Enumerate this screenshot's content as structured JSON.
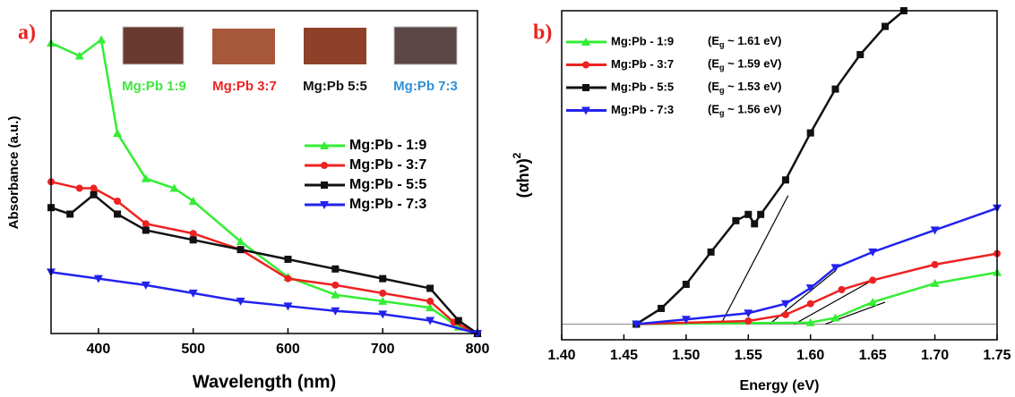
{
  "chart_data": [
    {
      "type": "line",
      "panel_label": "a)",
      "xlabel": "Wavelength (nm)",
      "ylabel": "Absorbance (a.u.)",
      "xlim": [
        350,
        800
      ],
      "xticks": [
        400,
        500,
        600,
        700,
        800
      ],
      "ylim": [
        0,
        1
      ],
      "photo_labels": [
        {
          "text": "Mg:Pb 1:9",
          "color": "#3ee63e"
        },
        {
          "text": "Mg:Pb 3:7",
          "color": "#ee2222"
        },
        {
          "text": "Mg:Pb 5:5",
          "color": "#111111"
        },
        {
          "text": "Mg:Pb 7:3",
          "color": "#2f8fd8"
        }
      ],
      "series": [
        {
          "name": "Mg:Pb - 1:9",
          "color": "#33ee33",
          "marker": "triangle-up",
          "x": [
            350,
            380,
            403,
            420,
            450,
            480,
            500,
            550,
            600,
            650,
            700,
            750,
            780,
            800
          ],
          "values": [
            0.9,
            0.86,
            0.91,
            0.62,
            0.48,
            0.45,
            0.41,
            0.285,
            0.175,
            0.12,
            0.1,
            0.08,
            0.02,
            0
          ]
        },
        {
          "name": "Mg:Pb - 3:7",
          "color": "#ee2222",
          "marker": "circle",
          "x": [
            350,
            380,
            395,
            420,
            450,
            500,
            550,
            600,
            650,
            700,
            750,
            775,
            800
          ],
          "values": [
            0.47,
            0.45,
            0.45,
            0.41,
            0.34,
            0.31,
            0.26,
            0.17,
            0.15,
            0.125,
            0.1,
            0.035,
            0
          ]
        },
        {
          "name": "Mg:Pb - 5:5",
          "color": "#111111",
          "marker": "square",
          "x": [
            350,
            370,
            395,
            420,
            450,
            500,
            550,
            600,
            650,
            700,
            750,
            780,
            800
          ],
          "values": [
            0.39,
            0.37,
            0.43,
            0.37,
            0.32,
            0.29,
            0.26,
            0.23,
            0.2,
            0.17,
            0.14,
            0.04,
            0
          ]
        },
        {
          "name": "Mg:Pb - 7:3",
          "color": "#2222ee",
          "marker": "triangle-down",
          "x": [
            350,
            400,
            450,
            500,
            550,
            600,
            650,
            700,
            750,
            800
          ],
          "values": [
            0.19,
            0.17,
            0.15,
            0.125,
            0.1,
            0.085,
            0.07,
            0.06,
            0.04,
            0
          ]
        }
      ]
    },
    {
      "type": "line",
      "panel_label": "b)",
      "xlabel": "Energy (eV)",
      "ylabel": "(αhν)",
      "ylabel_sup": "2",
      "xlim": [
        1.4,
        1.75
      ],
      "ylim": [
        -0.05,
        1
      ],
      "xticks": [
        {
          "value": 1.4,
          "label": "1.40"
        },
        {
          "value": 1.45,
          "label": "1.45"
        },
        {
          "value": 1.5,
          "label": "1.50"
        },
        {
          "value": 1.55,
          "label": "1.55"
        },
        {
          "value": 1.6,
          "label": "1.60"
        },
        {
          "value": 1.65,
          "label": "1.65"
        },
        {
          "value": 1.7,
          "label": "1.70"
        },
        {
          "value": 1.75,
          "label": "1.75"
        }
      ],
      "series": [
        {
          "name": "Mg:Pb - 1:9",
          "color": "#33ee33",
          "marker": "triangle-up",
          "note": {
            "prefix": "(E",
            "sub": "g",
            "suffix": " ~ 1.61 eV)"
          },
          "x": [
            1.46,
            1.6,
            1.62,
            1.65,
            1.7,
            1.75
          ],
          "values": [
            0,
            0.005,
            0.02,
            0.07,
            0.13,
            0.165
          ]
        },
        {
          "name": "Mg:Pb - 3:7",
          "color": "#ee2222",
          "marker": "circle",
          "note": {
            "prefix": "(E",
            "sub": "g",
            "suffix": " ~ 1.59 eV)"
          },
          "x": [
            1.46,
            1.55,
            1.58,
            1.6,
            1.625,
            1.65,
            1.7,
            1.75
          ],
          "values": [
            0,
            0.01,
            0.03,
            0.065,
            0.11,
            0.14,
            0.19,
            0.225
          ]
        },
        {
          "name": "Mg:Pb - 5:5",
          "color": "#111111",
          "marker": "square",
          "note": {
            "prefix": "(E",
            "sub": "g",
            "suffix": " ~ 1.53 eV)"
          },
          "x": [
            1.46,
            1.48,
            1.5,
            1.52,
            1.54,
            1.55,
            1.555,
            1.56,
            1.58,
            1.6,
            1.62,
            1.64,
            1.66,
            1.675
          ],
          "values": [
            0,
            0.05,
            0.127,
            0.23,
            0.33,
            0.35,
            0.32,
            0.35,
            0.46,
            0.61,
            0.75,
            0.86,
            0.95,
            1.0
          ]
        },
        {
          "name": "Mg:Pb - 7:3",
          "color": "#2222ee",
          "marker": "triangle-down",
          "note": {
            "prefix": "(E",
            "sub": "g",
            "suffix": " ~ 1.56 eV)"
          },
          "x": [
            1.46,
            1.5,
            1.55,
            1.58,
            1.6,
            1.62,
            1.65,
            1.7,
            1.75
          ],
          "values": [
            0,
            0.015,
            0.035,
            0.065,
            0.115,
            0.18,
            0.23,
            0.3,
            0.37
          ]
        }
      ],
      "fit_lines": [
        {
          "x": [
            1.528,
            1.582
          ],
          "y": [
            0,
            0.41
          ]
        },
        {
          "x": [
            1.567,
            1.62
          ],
          "y": [
            0,
            0.17
          ]
        },
        {
          "x": [
            1.587,
            1.65
          ],
          "y": [
            0,
            0.14
          ]
        },
        {
          "x": [
            1.612,
            1.66
          ],
          "y": [
            0,
            0.07
          ]
        }
      ]
    }
  ]
}
